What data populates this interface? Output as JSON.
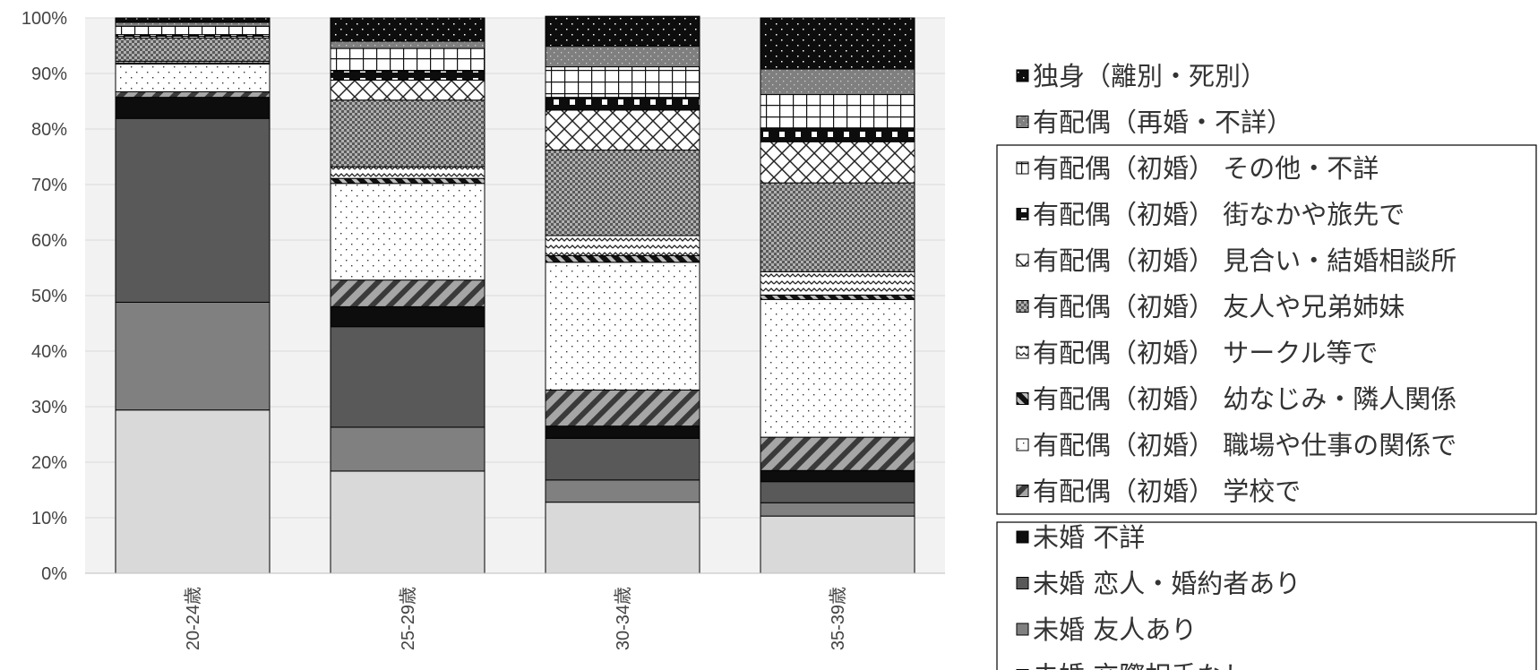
{
  "chart_data": {
    "type": "bar",
    "stacked": "percent",
    "categories": [
      "20-24歳",
      "25-29歳",
      "30-34歳",
      "35-39歳"
    ],
    "ylim": [
      0,
      100
    ],
    "yticks": [
      "0%",
      "10%",
      "20%",
      "30%",
      "40%",
      "50%",
      "60%",
      "70%",
      "80%",
      "90%",
      "100%"
    ],
    "grid": true,
    "legend_position": "right",
    "series": [
      {
        "name": "未婚 交際相手なし",
        "values": [
          29.4,
          18.4,
          12.8,
          10.3
        ],
        "color": "#d9d9d9",
        "pattern": "solid"
      },
      {
        "name": "未婚 友人あり",
        "values": [
          19.4,
          7.9,
          4.0,
          2.4
        ],
        "color": "#808080",
        "pattern": "solid"
      },
      {
        "name": "未婚 恋人・婚約者あり",
        "values": [
          33.1,
          18.1,
          7.5,
          3.8
        ],
        "color": "#595959",
        "pattern": "solid"
      },
      {
        "name": "未婚 不詳",
        "values": [
          3.8,
          3.6,
          2.2,
          2.0
        ],
        "color": "#0d0d0d",
        "pattern": "solid"
      },
      {
        "name": "有配偶（初婚） 学校で",
        "values": [
          1.0,
          4.8,
          6.5,
          6.0
        ],
        "color": "#a6a6a6",
        "pattern": "diag"
      },
      {
        "name": "有配偶（初婚） 職場や仕事の関係で",
        "values": [
          5.0,
          17.4,
          23.0,
          24.8
        ],
        "color": "#ffffff",
        "pattern": "sparse-dots"
      },
      {
        "name": "有配偶（初婚） 幼なじみ・隣人関係",
        "values": [
          0.2,
          0.9,
          1.2,
          0.8
        ],
        "color": "#333333",
        "pattern": "diag-dark"
      },
      {
        "name": "有配偶（初婚） サークル等で",
        "values": [
          0.3,
          2.1,
          3.6,
          4.2
        ],
        "color": "#ffffff",
        "pattern": "wave"
      },
      {
        "name": "有配偶（初婚） 友人や兄弟姉妹",
        "values": [
          4.2,
          12.0,
          15.4,
          16.0
        ],
        "color": "#8c8c8c",
        "pattern": "check"
      },
      {
        "name": "有配偶（初婚） 見合い・結婚相談所",
        "values": [
          0.3,
          3.6,
          7.2,
          7.4
        ],
        "color": "#ffffff",
        "pattern": "cross"
      },
      {
        "name": "有配偶（初婚） 街なかや旅先で",
        "values": [
          0.3,
          1.7,
          2.3,
          2.5
        ],
        "color": "#0d0d0d",
        "pattern": "square-dots"
      },
      {
        "name": "有配偶（初婚） その他・不詳",
        "values": [
          1.5,
          4.0,
          5.5,
          6.0
        ],
        "color": "#ffffff",
        "pattern": "grid"
      },
      {
        "name": "有配偶（再婚・不詳）",
        "values": [
          0.7,
          1.3,
          3.7,
          4.6
        ],
        "color": "#7f7f7f",
        "pattern": "gray-dots"
      },
      {
        "name": "独身（離別・死別）",
        "values": [
          0.8,
          4.2,
          5.4,
          9.2
        ],
        "color": "#0d0d0d",
        "pattern": "black-dots"
      }
    ],
    "legend_order": [
      13,
      12,
      11,
      10,
      9,
      8,
      7,
      6,
      5,
      4,
      3,
      2,
      1,
      0
    ]
  }
}
